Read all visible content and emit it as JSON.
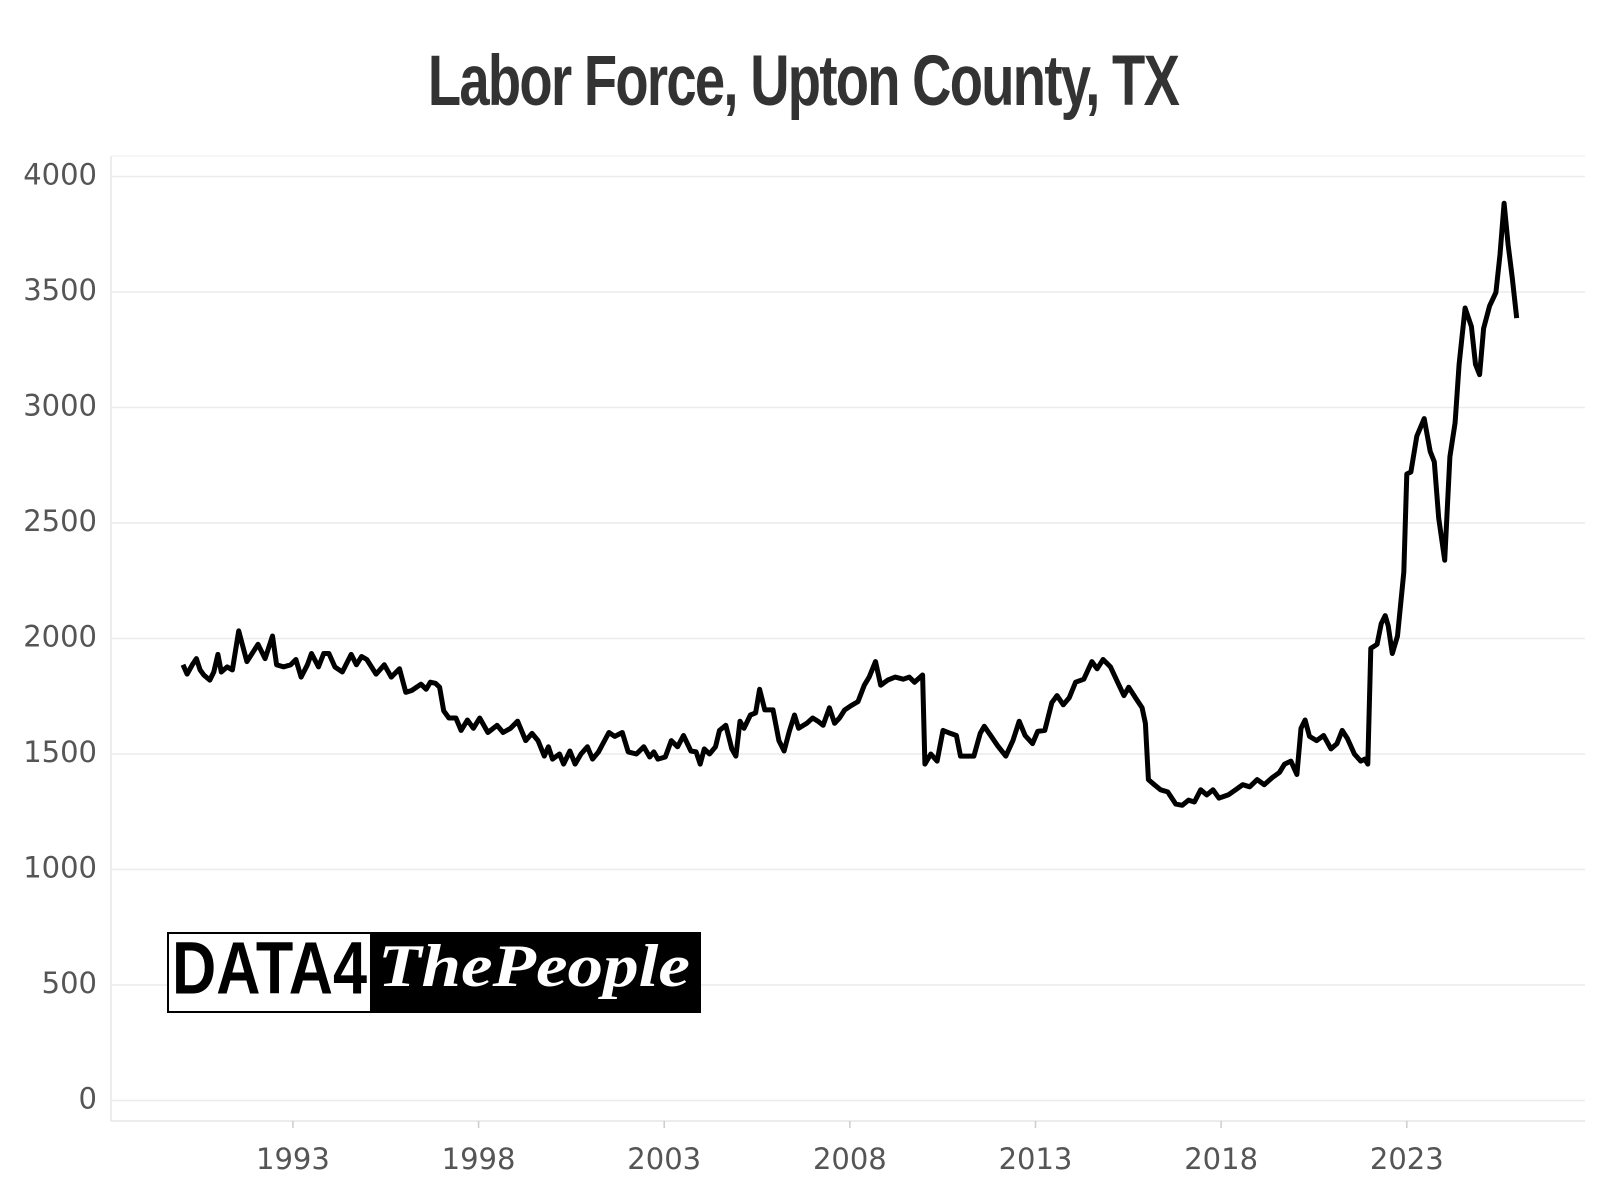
{
  "chart_data": {
    "type": "line",
    "title": "Labor Force, Upton County, TX",
    "x": [
      1990.04,
      1990.15,
      1990.29,
      1990.4,
      1990.5,
      1990.6,
      1990.76,
      1990.87,
      1990.98,
      1991.07,
      1991.23,
      1991.37,
      1991.54,
      1991.76,
      1992.06,
      1992.25,
      1992.45,
      1992.56,
      1992.75,
      1992.94,
      1993.08,
      1993.22,
      1993.39,
      1993.5,
      1993.69,
      1993.83,
      1993.97,
      1994.13,
      1994.33,
      1994.57,
      1994.71,
      1994.85,
      1994.99,
      1995.24,
      1995.46,
      1995.65,
      1995.87,
      1996.04,
      1996.2,
      1996.45,
      1996.59,
      1996.7,
      1996.84,
      1996.95,
      1997.06,
      1997.2,
      1997.39,
      1997.53,
      1997.7,
      1997.86,
      1998.03,
      1998.25,
      1998.5,
      1998.66,
      1998.86,
      1999.05,
      1999.27,
      1999.44,
      1999.6,
      1999.77,
      1999.88,
      1999.99,
      2000.18,
      2000.29,
      2000.46,
      2000.6,
      2000.76,
      2000.93,
      2001.07,
      2001.23,
      2001.51,
      2001.67,
      2001.87,
      2002.03,
      2002.25,
      2002.45,
      2002.61,
      2002.72,
      2002.83,
      2003.03,
      2003.19,
      2003.36,
      2003.52,
      2003.72,
      2003.86,
      2003.97,
      2004.08,
      2004.22,
      2004.38,
      2004.49,
      2004.66,
      2004.82,
      2004.93,
      2005.04,
      2005.15,
      2005.32,
      2005.46,
      2005.57,
      2005.71,
      2005.93,
      2006.09,
      2006.23,
      2006.37,
      2006.51,
      2006.62,
      2006.84,
      2007.0,
      2007.14,
      2007.28,
      2007.45,
      2007.59,
      2007.72,
      2007.86,
      2008.03,
      2008.22,
      2008.39,
      2008.52,
      2008.69,
      2008.83,
      2009.02,
      2009.22,
      2009.44,
      2009.6,
      2009.74,
      2009.96,
      2010.02,
      2010.18,
      2010.35,
      2010.51,
      2010.71,
      2010.87,
      2010.98,
      2011.18,
      2011.34,
      2011.51,
      2011.62,
      2011.81,
      2011.98,
      2012.2,
      2012.39,
      2012.56,
      2012.72,
      2012.92,
      2013.06,
      2013.25,
      2013.44,
      2013.58,
      2013.75,
      2013.91,
      2014.08,
      2014.3,
      2014.52,
      2014.66,
      2014.82,
      2015.02,
      2015.21,
      2015.38,
      2015.51,
      2015.69,
      2015.87,
      2015.96,
      2016.04,
      2016.2,
      2016.37,
      2016.56,
      2016.78,
      2016.95,
      2017.12,
      2017.28,
      2017.45,
      2017.61,
      2017.78,
      2017.94,
      2018.19,
      2018.39,
      2018.58,
      2018.77,
      2018.97,
      2019.16,
      2019.38,
      2019.57,
      2019.71,
      2019.88,
      2020.04,
      2020.15,
      2020.26,
      2020.38,
      2020.57,
      2020.76,
      2020.96,
      2021.12,
      2021.26,
      2021.4,
      2021.59,
      2021.76,
      2021.87,
      2021.95,
      2022.03,
      2022.2,
      2022.31,
      2022.42,
      2022.5,
      2022.61,
      2022.75,
      2022.92,
      2023.0,
      2023.11,
      2023.27,
      2023.47,
      2023.63,
      2023.74,
      2023.86,
      2024.02,
      2024.16,
      2024.3,
      2024.41,
      2024.57,
      2024.74,
      2024.85,
      2024.96,
      2025.07,
      2025.23,
      2025.4,
      2025.51,
      2025.62,
      2025.73,
      2025.84,
      2025.96
    ],
    "values": [
      1886,
      1846,
      1886,
      1913,
      1864,
      1842,
      1820,
      1855,
      1931,
      1855,
      1877,
      1864,
      2033,
      1900,
      1975,
      1913,
      2011,
      1886,
      1877,
      1886,
      1909,
      1833,
      1886,
      1935,
      1877,
      1935,
      1935,
      1877,
      1855,
      1931,
      1886,
      1922,
      1909,
      1846,
      1886,
      1833,
      1869,
      1767,
      1775,
      1802,
      1780,
      1811,
      1806,
      1789,
      1687,
      1656,
      1656,
      1602,
      1647,
      1611,
      1656,
      1593,
      1624,
      1593,
      1611,
      1642,
      1558,
      1589,
      1558,
      1491,
      1531,
      1478,
      1500,
      1456,
      1513,
      1456,
      1500,
      1531,
      1478,
      1509,
      1593,
      1576,
      1593,
      1509,
      1500,
      1531,
      1487,
      1509,
      1478,
      1487,
      1558,
      1531,
      1580,
      1513,
      1509,
      1456,
      1522,
      1500,
      1531,
      1602,
      1624,
      1522,
      1491,
      1642,
      1611,
      1669,
      1678,
      1780,
      1691,
      1691,
      1558,
      1513,
      1598,
      1669,
      1611,
      1633,
      1656,
      1642,
      1624,
      1700,
      1633,
      1656,
      1691,
      1709,
      1727,
      1798,
      1833,
      1900,
      1798,
      1820,
      1833,
      1824,
      1833,
      1811,
      1842,
      1456,
      1500,
      1469,
      1602,
      1589,
      1580,
      1491,
      1491,
      1491,
      1589,
      1620,
      1576,
      1536,
      1491,
      1558,
      1642,
      1580,
      1545,
      1598,
      1602,
      1722,
      1753,
      1713,
      1744,
      1811,
      1824,
      1900,
      1869,
      1909,
      1877,
      1811,
      1753,
      1789,
      1744,
      1700,
      1633,
      1389,
      1367,
      1345,
      1336,
      1283,
      1278,
      1300,
      1292,
      1345,
      1323,
      1345,
      1309,
      1323,
      1345,
      1367,
      1358,
      1389,
      1367,
      1398,
      1420,
      1456,
      1469,
      1411,
      1611,
      1647,
      1576,
      1558,
      1580,
      1522,
      1545,
      1602,
      1567,
      1500,
      1469,
      1478,
      1456,
      1957,
      1975,
      2064,
      2099,
      2055,
      1935,
      2011,
      2286,
      2712,
      2721,
      2876,
      2952,
      2810,
      2765,
      2521,
      2339,
      2787,
      2934,
      3187,
      3431,
      3351,
      3187,
      3142,
      3342,
      3440,
      3498,
      3662,
      3884,
      3706,
      3564,
      3387
    ],
    "color": "#000000",
    "xlim": [
      1988.1,
      2027.8
    ],
    "xticks": [
      1993,
      1998,
      2003,
      2008,
      2013,
      2018,
      2023
    ],
    "ylim": [
      -89,
      4089
    ],
    "yticks": [
      0,
      500,
      1000,
      1500,
      2000,
      2500,
      3000,
      3500,
      4000
    ],
    "grid": true,
    "watermark": [
      "DATA4",
      "ThePeople"
    ]
  }
}
